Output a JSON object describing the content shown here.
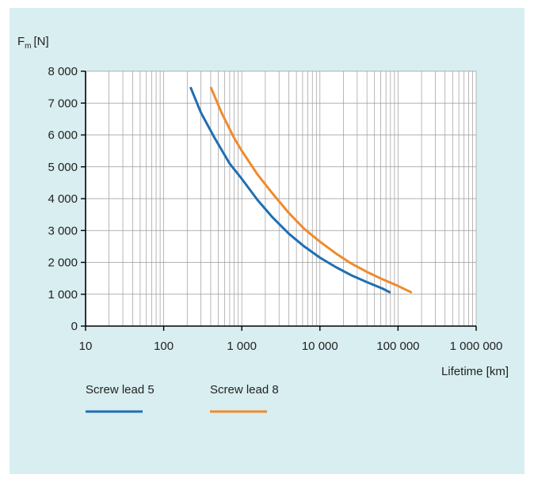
{
  "colors": {
    "panel_background": "#d9eef0",
    "plot_background": "#ffffff",
    "grid": "#9a9a9a",
    "axis": "#000000",
    "series_lead5": "#1f6fb2",
    "series_lead8": "#f08a2c"
  },
  "chart_data": {
    "type": "line",
    "xscale": "log",
    "yscale": "linear",
    "xlabel": "Lifetime [km]",
    "ylabel_main": "F",
    "ylabel_sub": "m",
    "ylabel_unit": "[N]",
    "xlim": [
      10,
      1000000
    ],
    "ylim": [
      0,
      8000
    ],
    "grid": true,
    "x_ticks": [
      {
        "value": 10,
        "label": "10"
      },
      {
        "value": 100,
        "label": "100"
      },
      {
        "value": 1000,
        "label": "1 000"
      },
      {
        "value": 10000,
        "label": "10 000"
      },
      {
        "value": 100000,
        "label": "100 000"
      },
      {
        "value": 1000000,
        "label": "1 000 000"
      }
    ],
    "y_ticks": [
      {
        "value": 0,
        "label": "0"
      },
      {
        "value": 1000,
        "label": "1 000"
      },
      {
        "value": 2000,
        "label": "2 000"
      },
      {
        "value": 3000,
        "label": "3 000"
      },
      {
        "value": 4000,
        "label": "4 000"
      },
      {
        "value": 5000,
        "label": "5 000"
      },
      {
        "value": 6000,
        "label": "6 000"
      },
      {
        "value": 7000,
        "label": "7 000"
      },
      {
        "value": 8000,
        "label": "8 000"
      }
    ],
    "legend_position": "bottom-left",
    "series": [
      {
        "name": "Screw lead 5",
        "color_key": "series_lead5",
        "points": [
          [
            220,
            7500
          ],
          [
            300,
            6700
          ],
          [
            450,
            5900
          ],
          [
            700,
            5100
          ],
          [
            1000,
            4620
          ],
          [
            1600,
            3950
          ],
          [
            2500,
            3400
          ],
          [
            4000,
            2900
          ],
          [
            6300,
            2500
          ],
          [
            10000,
            2150
          ],
          [
            16000,
            1850
          ],
          [
            25000,
            1600
          ],
          [
            40000,
            1380
          ],
          [
            63000,
            1180
          ],
          [
            80000,
            1050
          ]
        ]
      },
      {
        "name": "Screw lead 8",
        "color_key": "series_lead8",
        "points": [
          [
            400,
            7500
          ],
          [
            550,
            6700
          ],
          [
            800,
            5900
          ],
          [
            1000,
            5500
          ],
          [
            1600,
            4750
          ],
          [
            2500,
            4150
          ],
          [
            4000,
            3550
          ],
          [
            6300,
            3050
          ],
          [
            10000,
            2650
          ],
          [
            16000,
            2280
          ],
          [
            25000,
            1970
          ],
          [
            40000,
            1700
          ],
          [
            63000,
            1470
          ],
          [
            100000,
            1260
          ],
          [
            150000,
            1050
          ]
        ]
      }
    ]
  }
}
